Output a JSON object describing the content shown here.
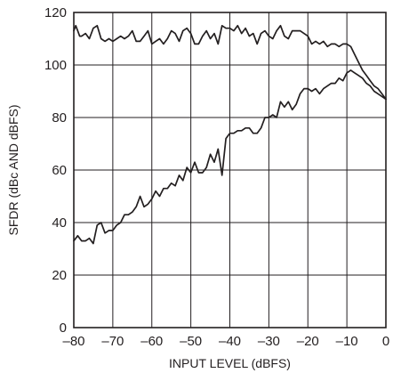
{
  "chart_data": {
    "type": "line",
    "title": "",
    "xlabel": "INPUT LEVEL (dBFS)",
    "ylabel": "SFDR (dBc AND dBFS)",
    "xlim": [
      -80,
      0
    ],
    "ylim": [
      0,
      120
    ],
    "xticks": [
      -80,
      -70,
      -60,
      -50,
      -40,
      -30,
      -20,
      -10,
      0
    ],
    "xtick_labels": [
      "–80",
      "–70",
      "–60",
      "–50",
      "–40",
      "–30",
      "–20",
      "–10",
      "0"
    ],
    "yticks": [
      0,
      20,
      40,
      60,
      80,
      100,
      120
    ],
    "ytick_labels": [
      "0",
      "20",
      "40",
      "60",
      "80",
      "100",
      "120"
    ],
    "grid": true,
    "legend": "none",
    "series": [
      {
        "points": [
          [
            -80,
            113
          ],
          [
            -79.5,
            115
          ],
          [
            -79,
            113
          ],
          [
            -78.5,
            111
          ],
          [
            -78,
            111
          ],
          [
            -77,
            112
          ],
          [
            -76,
            110
          ],
          [
            -75,
            114
          ],
          [
            -74,
            115
          ],
          [
            -73,
            110
          ],
          [
            -72,
            109
          ],
          [
            -71,
            110
          ],
          [
            -70,
            109
          ],
          [
            -69,
            110
          ],
          [
            -68,
            111
          ],
          [
            -67,
            110
          ],
          [
            -66,
            111
          ],
          [
            -65,
            113
          ],
          [
            -64,
            109
          ],
          [
            -63,
            109
          ],
          [
            -62,
            111
          ],
          [
            -61,
            113
          ],
          [
            -60,
            108
          ],
          [
            -59,
            109
          ],
          [
            -58,
            110
          ],
          [
            -57,
            108
          ],
          [
            -56,
            110
          ],
          [
            -55,
            113
          ],
          [
            -54,
            112
          ],
          [
            -53,
            109
          ],
          [
            -52,
            113
          ],
          [
            -51,
            114
          ],
          [
            -50,
            112
          ],
          [
            -49,
            108
          ],
          [
            -48,
            108
          ],
          [
            -47,
            111
          ],
          [
            -46,
            113
          ],
          [
            -45,
            110
          ],
          [
            -44,
            112
          ],
          [
            -43,
            108
          ],
          [
            -42,
            115
          ],
          [
            -41,
            114
          ],
          [
            -40,
            114
          ],
          [
            -39,
            113
          ],
          [
            -38,
            115
          ],
          [
            -37,
            112
          ],
          [
            -36,
            114
          ],
          [
            -35,
            111
          ],
          [
            -34,
            112
          ],
          [
            -33,
            108
          ],
          [
            -32,
            112
          ],
          [
            -31,
            113
          ],
          [
            -30,
            111
          ],
          [
            -29,
            110
          ],
          [
            -28,
            113
          ],
          [
            -27,
            115
          ],
          [
            -26,
            111
          ],
          [
            -25,
            110
          ],
          [
            -24,
            113
          ],
          [
            -23,
            113
          ],
          [
            -22,
            113
          ],
          [
            -21,
            112
          ],
          [
            -20,
            111
          ],
          [
            -19,
            108
          ],
          [
            -18,
            109
          ],
          [
            -17,
            108
          ],
          [
            -16,
            109
          ],
          [
            -15,
            107
          ],
          [
            -14,
            108
          ],
          [
            -13,
            108
          ],
          [
            -12,
            107
          ],
          [
            -11,
            108
          ],
          [
            -10,
            108
          ],
          [
            -9,
            107
          ],
          [
            -8,
            104
          ],
          [
            -7,
            101
          ],
          [
            -6,
            98
          ],
          [
            -5,
            96
          ],
          [
            -4,
            94
          ],
          [
            -3,
            92
          ],
          [
            -2,
            91
          ],
          [
            -1,
            89
          ],
          [
            0,
            87
          ]
        ]
      },
      {
        "points": [
          [
            -80,
            33
          ],
          [
            -79,
            35
          ],
          [
            -78,
            33
          ],
          [
            -77,
            33
          ],
          [
            -76,
            34
          ],
          [
            -75,
            32
          ],
          [
            -74,
            39
          ],
          [
            -73,
            40
          ],
          [
            -72,
            36
          ],
          [
            -71,
            37
          ],
          [
            -70,
            37
          ],
          [
            -69,
            39
          ],
          [
            -68,
            40
          ],
          [
            -67,
            43
          ],
          [
            -66,
            43
          ],
          [
            -65,
            44
          ],
          [
            -64,
            46
          ],
          [
            -63,
            50
          ],
          [
            -62,
            46
          ],
          [
            -61,
            47
          ],
          [
            -60,
            49
          ],
          [
            -59,
            52
          ],
          [
            -58,
            50
          ],
          [
            -57,
            53
          ],
          [
            -56,
            53
          ],
          [
            -55,
            55
          ],
          [
            -54,
            54
          ],
          [
            -53,
            58
          ],
          [
            -52,
            56
          ],
          [
            -51,
            61
          ],
          [
            -50,
            59
          ],
          [
            -49,
            63
          ],
          [
            -48,
            59
          ],
          [
            -47,
            59
          ],
          [
            -46,
            61
          ],
          [
            -45,
            66
          ],
          [
            -44,
            63
          ],
          [
            -43,
            68
          ],
          [
            -42,
            58
          ],
          [
            -41,
            72
          ],
          [
            -40,
            74
          ],
          [
            -39,
            74
          ],
          [
            -38,
            75
          ],
          [
            -37,
            75
          ],
          [
            -36,
            76
          ],
          [
            -35,
            76
          ],
          [
            -34,
            74
          ],
          [
            -33,
            74
          ],
          [
            -32,
            76
          ],
          [
            -31,
            80
          ],
          [
            -30,
            80
          ],
          [
            -29,
            81
          ],
          [
            -28,
            80
          ],
          [
            -27,
            86
          ],
          [
            -26,
            84
          ],
          [
            -25,
            86
          ],
          [
            -24,
            83
          ],
          [
            -23,
            85
          ],
          [
            -22,
            89
          ],
          [
            -21,
            91
          ],
          [
            -20,
            91
          ],
          [
            -19,
            90
          ],
          [
            -18,
            91
          ],
          [
            -17,
            89
          ],
          [
            -16,
            91
          ],
          [
            -15,
            92
          ],
          [
            -14,
            93
          ],
          [
            -13,
            93
          ],
          [
            -12,
            95
          ],
          [
            -11,
            94
          ],
          [
            -10,
            97
          ],
          [
            -9,
            98
          ],
          [
            -8,
            97
          ],
          [
            -7,
            96
          ],
          [
            -6,
            95
          ],
          [
            -5,
            93
          ],
          [
            -4,
            92
          ],
          [
            -3,
            90
          ],
          [
            -2,
            89
          ],
          [
            -1,
            88
          ],
          [
            0,
            87
          ]
        ]
      }
    ]
  }
}
